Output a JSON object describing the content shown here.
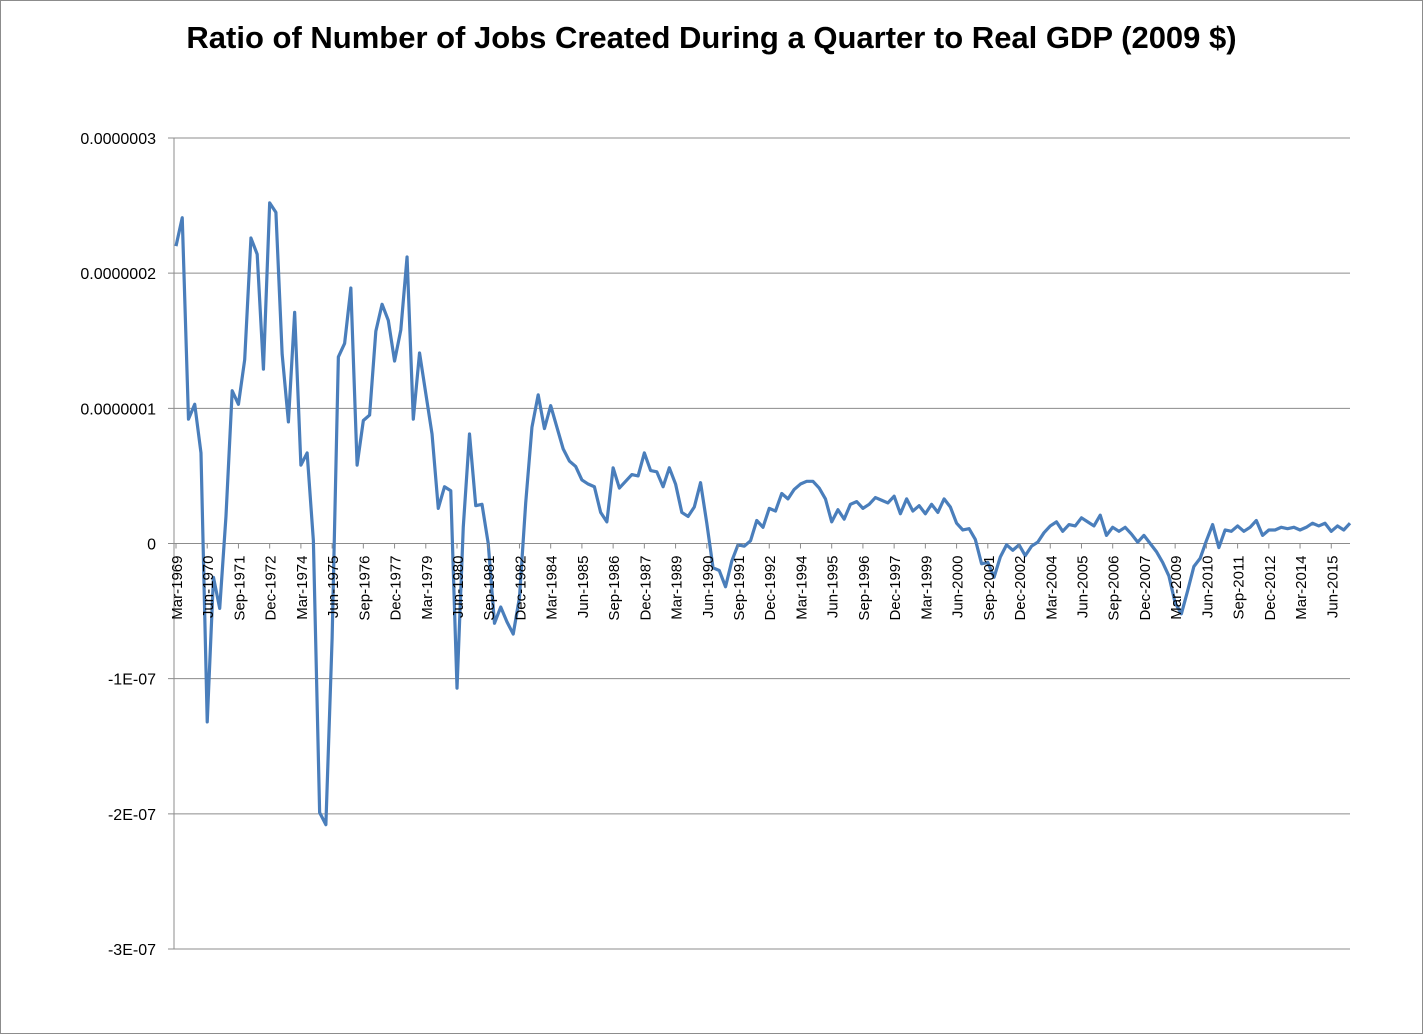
{
  "chart_data": {
    "type": "line",
    "title": "Ratio of Number of Jobs Created During a Quarter to Real GDP (2009 $)",
    "xlabel": "",
    "ylabel": "",
    "ylim": [
      -3e-07,
      3e-07
    ],
    "grid": true,
    "legend": "none",
    "line_color": "#4a7ebb",
    "y_ticks": [
      {
        "value": 3e-07,
        "label": "0.0000003"
      },
      {
        "value": 2e-07,
        "label": "0.0000002"
      },
      {
        "value": 1e-07,
        "label": "0.0000001"
      },
      {
        "value": 0,
        "label": "0"
      },
      {
        "value": -1e-07,
        "label": "-1E-07"
      },
      {
        "value": -2e-07,
        "label": "-2E-07"
      },
      {
        "value": -3e-07,
        "label": "-3E-07"
      }
    ],
    "x_tick_labels": [
      "Mar-1969",
      "Jun-1970",
      "Sep-1971",
      "Dec-1972",
      "Mar-1974",
      "Jun-1975",
      "Sep-1976",
      "Dec-1977",
      "Mar-1979",
      "Jun-1980",
      "Sep-1981",
      "Dec-1982",
      "Mar-1984",
      "Jun-1985",
      "Sep-1986",
      "Dec-1987",
      "Mar-1989",
      "Jun-1990",
      "Sep-1991",
      "Dec-1992",
      "Mar-1994",
      "Jun-1995",
      "Sep-1996",
      "Dec-1997",
      "Mar-1999",
      "Jun-2000",
      "Sep-2001",
      "Dec-2002",
      "Mar-2004",
      "Jun-2005",
      "Sep-2006",
      "Dec-2007",
      "Mar-2009",
      "Jun-2010",
      "Sep-2011",
      "Dec-2012",
      "Mar-2014",
      "Jun-2015"
    ],
    "x_start": "Mar-1969",
    "x_end": "Dec-2015",
    "values_unit": "1e-7",
    "values": [
      2.2,
      2.41,
      0.92,
      1.03,
      0.67,
      -1.32,
      -0.25,
      -0.48,
      0.2,
      1.13,
      1.03,
      1.36,
      2.26,
      2.14,
      1.29,
      2.52,
      2.45,
      1.4,
      0.9,
      1.71,
      0.58,
      0.67,
      0.02,
      -1.99,
      -2.08,
      -0.7,
      1.38,
      1.48,
      1.89,
      0.58,
      0.91,
      0.95,
      1.57,
      1.77,
      1.65,
      1.35,
      1.58,
      2.12,
      0.92,
      1.41,
      1.11,
      0.81,
      0.26,
      0.42,
      0.39,
      -1.07,
      0.12,
      0.81,
      0.28,
      0.29,
      0.0,
      -0.59,
      -0.47,
      -0.58,
      -0.67,
      -0.4,
      0.3,
      0.86,
      1.1,
      0.85,
      1.02,
      0.86,
      0.7,
      0.61,
      0.57,
      0.47,
      0.44,
      0.42,
      0.23,
      0.16,
      0.56,
      0.41,
      0.46,
      0.51,
      0.5,
      0.67,
      0.54,
      0.53,
      0.42,
      0.56,
      0.44,
      0.23,
      0.2,
      0.27,
      0.45,
      0.15,
      -0.18,
      -0.2,
      -0.32,
      -0.13,
      -0.01,
      -0.02,
      0.02,
      0.17,
      0.12,
      0.26,
      0.24,
      0.37,
      0.33,
      0.4,
      0.44,
      0.46,
      0.46,
      0.41,
      0.33,
      0.16,
      0.25,
      0.18,
      0.29,
      0.31,
      0.26,
      0.29,
      0.34,
      0.32,
      0.3,
      0.35,
      0.22,
      0.33,
      0.24,
      0.28,
      0.22,
      0.29,
      0.23,
      0.33,
      0.27,
      0.15,
      0.1,
      0.11,
      0.03,
      -0.15,
      -0.14,
      -0.25,
      -0.1,
      -0.01,
      -0.05,
      -0.01,
      -0.09,
      -0.02,
      0.01,
      0.08,
      0.13,
      0.16,
      0.09,
      0.14,
      0.13,
      0.19,
      0.16,
      0.13,
      0.21,
      0.06,
      0.12,
      0.09,
      0.12,
      0.07,
      0.01,
      0.06,
      0.0,
      -0.06,
      -0.14,
      -0.24,
      -0.44,
      -0.52,
      -0.35,
      -0.17,
      -0.11,
      0.02,
      0.14,
      -0.03,
      0.1,
      0.09,
      0.13,
      0.09,
      0.12,
      0.17,
      0.06,
      0.1,
      0.1,
      0.12,
      0.11,
      0.12,
      0.1,
      0.12,
      0.15,
      0.13,
      0.15,
      0.09,
      0.13,
      0.1,
      0.15
    ]
  }
}
